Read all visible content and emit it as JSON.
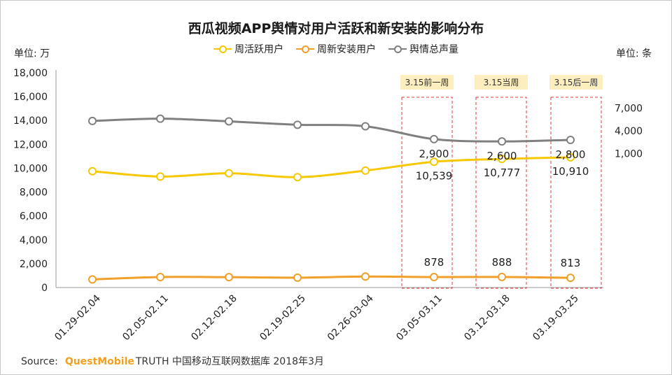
{
  "chart_data": {
    "type": "line",
    "title": "西瓜视频APP舆情对用户活跃和新安装的影响分布",
    "categories": [
      "01.29-02.04",
      "02.05-02.11",
      "02.12-02.18",
      "02.19-02.25",
      "02.26-03-04",
      "03.05-03.11",
      "03.12-03.18",
      "03.19-03.25"
    ],
    "y_left": {
      "unit": "单位: 万",
      "min": 0,
      "max": 18000,
      "ticks": [
        "0",
        "2,000",
        "4,000",
        "6,000",
        "8,000",
        "10,000",
        "12,000",
        "14,000",
        "16,000",
        "18,000"
      ]
    },
    "y_right": {
      "unit": "单位: 条",
      "ticks": [
        "7,000",
        "4,000",
        "1,000"
      ]
    },
    "series": [
      {
        "name": "周活跃用户",
        "color": "#f5c800",
        "axis": "left",
        "values": [
          9750,
          9300,
          9580,
          9250,
          9800,
          10539,
          10777,
          10910
        ],
        "labels": [
          "",
          "",
          "",
          "",
          "",
          "10,539",
          "10,777",
          "10,910"
        ]
      },
      {
        "name": "周新安装用户",
        "color": "#f0a028",
        "axis": "left",
        "values": [
          680,
          880,
          870,
          830,
          920,
          878,
          888,
          813
        ],
        "labels": [
          "",
          "",
          "",
          "",
          "",
          "878",
          "888",
          "813"
        ]
      },
      {
        "name": "舆情总声量",
        "color": "#808080",
        "axis": "right",
        "values": [
          5300,
          5600,
          5250,
          4800,
          4600,
          2900,
          2600,
          2800
        ],
        "labels": [
          "",
          "",
          "",
          "",
          "",
          "2,900",
          "2,600",
          "2,800"
        ]
      }
    ],
    "annotations": [
      "3.15前一周",
      "3.15当周",
      "3.15后一周"
    ],
    "grid": false,
    "legend": "top-center"
  },
  "source": {
    "prefix": "Source:",
    "brand": "QuestMobile",
    "text": "TRUTH 中国移动互联网数据库 2018年3月"
  }
}
